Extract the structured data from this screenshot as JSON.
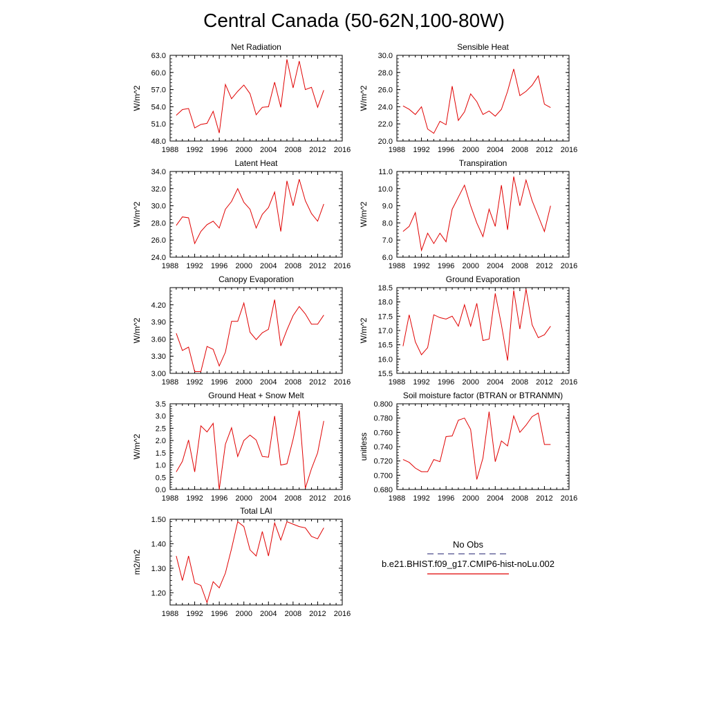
{
  "title": "Central Canada (50-62N,100-80W)",
  "legend": {
    "obs_label": "No Obs",
    "model_label": "b.e21.BHIST.f09_g17.CMIP6-hist-noLu.002",
    "obs_color": "#4a4a8a",
    "model_color": "#e00000"
  },
  "chart_data": [
    {
      "type": "line",
      "title": "Net Radiation",
      "ylabel": "W/m^2",
      "xlim": [
        1988,
        2016
      ],
      "xticks": [
        "1988",
        "1992",
        "1996",
        "2000",
        "2004",
        "2008",
        "2012",
        "2016"
      ],
      "ylim": [
        48.0,
        63.0
      ],
      "yticks": [
        "48.0",
        "51.0",
        "54.0",
        "57.0",
        "60.0",
        "63.0"
      ],
      "x": [
        1989,
        1990,
        1991,
        1992,
        1993,
        1994,
        1995,
        1996,
        1997,
        1998,
        1999,
        2000,
        2001,
        2002,
        2003,
        2004,
        2005,
        2006,
        2007,
        2008,
        2009,
        2010,
        2011,
        2012,
        2013
      ],
      "values": [
        52.5,
        53.5,
        53.7,
        50.3,
        50.9,
        51.1,
        53.2,
        49.4,
        57.9,
        55.4,
        56.7,
        57.8,
        56.3,
        52.6,
        53.9,
        54.0,
        58.3,
        53.9,
        62.3,
        57.3,
        62.0,
        57.0,
        57.4,
        53.9,
        56.9
      ]
    },
    {
      "type": "line",
      "title": "Sensible Heat",
      "ylabel": "W/m^2",
      "xlim": [
        1988,
        2016
      ],
      "xticks": [
        "1988",
        "1992",
        "1996",
        "2000",
        "2004",
        "2008",
        "2012",
        "2016"
      ],
      "ylim": [
        20.0,
        30.0
      ],
      "yticks": [
        "20.0",
        "22.0",
        "24.0",
        "26.0",
        "28.0",
        "30.0"
      ],
      "x": [
        1989,
        1990,
        1991,
        1992,
        1993,
        1994,
        1995,
        1996,
        1997,
        1998,
        1999,
        2000,
        2001,
        2002,
        2003,
        2004,
        2005,
        2006,
        2007,
        2008,
        2009,
        2010,
        2011,
        2012,
        2013
      ],
      "values": [
        24.1,
        23.7,
        23.1,
        24.0,
        21.4,
        20.9,
        22.3,
        21.9,
        26.4,
        22.4,
        23.4,
        25.5,
        24.6,
        23.1,
        23.5,
        22.9,
        23.7,
        25.8,
        28.4,
        25.3,
        25.8,
        26.5,
        27.6,
        24.3,
        23.9
      ]
    },
    {
      "type": "line",
      "title": "Latent Heat",
      "ylabel": "W/m^2",
      "xlim": [
        1988,
        2016
      ],
      "xticks": [
        "1988",
        "1992",
        "1996",
        "2000",
        "2004",
        "2008",
        "2012",
        "2016"
      ],
      "ylim": [
        24.0,
        34.0
      ],
      "yticks": [
        "24.0",
        "26.0",
        "28.0",
        "30.0",
        "32.0",
        "34.0"
      ],
      "x": [
        1989,
        1990,
        1991,
        1992,
        1993,
        1994,
        1995,
        1996,
        1997,
        1998,
        1999,
        2000,
        2001,
        2002,
        2003,
        2004,
        2005,
        2006,
        2007,
        2008,
        2009,
        2010,
        2011,
        2012,
        2013
      ],
      "values": [
        27.7,
        28.7,
        28.6,
        25.6,
        27.0,
        27.8,
        28.2,
        27.4,
        29.6,
        30.5,
        32.0,
        30.4,
        29.6,
        27.4,
        29.0,
        29.8,
        31.6,
        27.0,
        32.9,
        30.0,
        33.1,
        30.6,
        29.1,
        28.2,
        30.2
      ]
    },
    {
      "type": "line",
      "title": "Transpiration",
      "ylabel": "W/m^2",
      "xlim": [
        1988,
        2016
      ],
      "xticks": [
        "1988",
        "1992",
        "1996",
        "2000",
        "2004",
        "2008",
        "2012",
        "2016"
      ],
      "ylim": [
        6.0,
        11.0
      ],
      "yticks": [
        "6.0",
        "7.0",
        "8.0",
        "9.0",
        "10.0",
        "11.0"
      ],
      "x": [
        1989,
        1990,
        1991,
        1992,
        1993,
        1994,
        1995,
        1996,
        1997,
        1998,
        1999,
        2000,
        2001,
        2002,
        2003,
        2004,
        2005,
        2006,
        2007,
        2008,
        2009,
        2010,
        2011,
        2012,
        2013
      ],
      "values": [
        7.5,
        7.8,
        8.6,
        6.4,
        7.4,
        6.8,
        7.4,
        6.9,
        8.8,
        9.5,
        10.2,
        9.0,
        8.0,
        7.2,
        8.8,
        7.8,
        10.2,
        7.6,
        10.7,
        9.0,
        10.5,
        9.3,
        8.4,
        7.5,
        9.0
      ]
    },
    {
      "type": "line",
      "title": "Canopy Evaporation",
      "ylabel": "W/m^2",
      "xlim": [
        1988,
        2016
      ],
      "xticks": [
        "1988",
        "1992",
        "1996",
        "2000",
        "2004",
        "2008",
        "2012",
        "2016"
      ],
      "ylim": [
        3.0,
        4.5
      ],
      "yticks": [
        "3.00",
        "3.30",
        "3.60",
        "3.90",
        "4.20"
      ],
      "ytick_values": [
        3.0,
        3.3,
        3.6,
        3.9,
        4.2
      ],
      "x": [
        1989,
        1990,
        1991,
        1992,
        1993,
        1994,
        1995,
        1996,
        1997,
        1998,
        1999,
        2000,
        2001,
        2002,
        2003,
        2004,
        2005,
        2006,
        2007,
        2008,
        2009,
        2010,
        2011,
        2012,
        2013
      ],
      "values": [
        3.7,
        3.4,
        3.46,
        3.03,
        3.03,
        3.47,
        3.42,
        3.13,
        3.37,
        3.91,
        3.91,
        4.23,
        3.72,
        3.59,
        3.71,
        3.77,
        4.29,
        3.48,
        3.76,
        4.01,
        4.17,
        4.04,
        3.86,
        3.86,
        4.02
      ]
    },
    {
      "type": "line",
      "title": "Ground Evaporation",
      "ylabel": "W/m^2",
      "xlim": [
        1988,
        2016
      ],
      "xticks": [
        "1988",
        "1992",
        "1996",
        "2000",
        "2004",
        "2008",
        "2012",
        "2016"
      ],
      "ylim": [
        15.5,
        18.5
      ],
      "yticks": [
        "15.5",
        "16.0",
        "16.5",
        "17.0",
        "17.5",
        "18.0",
        "18.5"
      ],
      "x": [
        1989,
        1990,
        1991,
        1992,
        1993,
        1994,
        1995,
        1996,
        1997,
        1998,
        1999,
        2000,
        2001,
        2002,
        2003,
        2004,
        2005,
        2006,
        2007,
        2008,
        2009,
        2010,
        2011,
        2012,
        2013
      ],
      "values": [
        16.45,
        17.55,
        16.6,
        16.15,
        16.4,
        17.55,
        17.45,
        17.4,
        17.5,
        17.15,
        17.9,
        17.15,
        17.95,
        16.65,
        16.7,
        18.3,
        17.2,
        15.95,
        18.4,
        17.05,
        18.45,
        17.2,
        16.75,
        16.85,
        17.15
      ]
    },
    {
      "type": "line",
      "title": "Ground Heat + Snow Melt",
      "ylabel": "W/m^2",
      "xlim": [
        1988,
        2016
      ],
      "xticks": [
        "1988",
        "1992",
        "1996",
        "2000",
        "2004",
        "2008",
        "2012",
        "2016"
      ],
      "ylim": [
        0.0,
        3.5
      ],
      "yticks": [
        "0.0",
        "0.5",
        "1.0",
        "1.5",
        "2.0",
        "2.5",
        "3.0",
        "3.5"
      ],
      "x": [
        1989,
        1990,
        1991,
        1992,
        1993,
        1994,
        1995,
        1996,
        1997,
        1998,
        1999,
        2000,
        2001,
        2002,
        2003,
        2004,
        2005,
        2006,
        2007,
        2008,
        2009,
        2010,
        2011,
        2012,
        2013
      ],
      "values": [
        0.72,
        1.15,
        2.02,
        0.72,
        2.6,
        2.35,
        2.7,
        0.0,
        1.85,
        2.52,
        1.35,
        2.0,
        2.22,
        2.02,
        1.35,
        1.32,
        3.0,
        1.0,
        1.05,
        2.05,
        3.22,
        0.05,
        0.85,
        1.5,
        2.8
      ]
    },
    {
      "type": "line",
      "title": "Soil moisture factor (BTRAN or BTRANMN)",
      "ylabel": "unitless",
      "xlim": [
        1988,
        2016
      ],
      "xticks": [
        "1988",
        "1992",
        "1996",
        "2000",
        "2004",
        "2008",
        "2012",
        "2016"
      ],
      "ylim": [
        0.68,
        0.8
      ],
      "yticks": [
        "0.680",
        "0.700",
        "0.720",
        "0.740",
        "0.760",
        "0.780",
        "0.800"
      ],
      "x": [
        1989,
        1990,
        1991,
        1992,
        1993,
        1994,
        1995,
        1996,
        1997,
        1998,
        1999,
        2000,
        2001,
        2002,
        2003,
        2004,
        2005,
        2006,
        2007,
        2008,
        2009,
        2010,
        2011,
        2012,
        2013
      ],
      "values": [
        0.722,
        0.718,
        0.71,
        0.705,
        0.705,
        0.722,
        0.719,
        0.754,
        0.755,
        0.777,
        0.78,
        0.764,
        0.694,
        0.724,
        0.789,
        0.719,
        0.748,
        0.741,
        0.783,
        0.76,
        0.77,
        0.782,
        0.787,
        0.743,
        0.743
      ]
    },
    {
      "type": "line",
      "title": "Total LAI",
      "ylabel": "m2/m2",
      "xlim": [
        1988,
        2016
      ],
      "xticks": [
        "1988",
        "1992",
        "1996",
        "2000",
        "2004",
        "2008",
        "2012",
        "2016"
      ],
      "ylim": [
        1.15,
        1.5
      ],
      "yticks": [
        "1.20",
        "1.30",
        "1.40",
        "1.50"
      ],
      "ytick_values": [
        1.2,
        1.3,
        1.4,
        1.5
      ],
      "x": [
        1989,
        1990,
        1991,
        1992,
        1993,
        1994,
        1995,
        1996,
        1997,
        1998,
        1999,
        2000,
        2001,
        2002,
        2003,
        2004,
        2005,
        2006,
        2007,
        2008,
        2009,
        2010,
        2011,
        2012,
        2013
      ],
      "values": [
        1.35,
        1.25,
        1.35,
        1.24,
        1.23,
        1.16,
        1.245,
        1.22,
        1.28,
        1.38,
        1.49,
        1.47,
        1.375,
        1.35,
        1.45,
        1.35,
        1.485,
        1.415,
        1.49,
        1.48,
        1.47,
        1.465,
        1.43,
        1.42,
        1.465
      ]
    }
  ]
}
